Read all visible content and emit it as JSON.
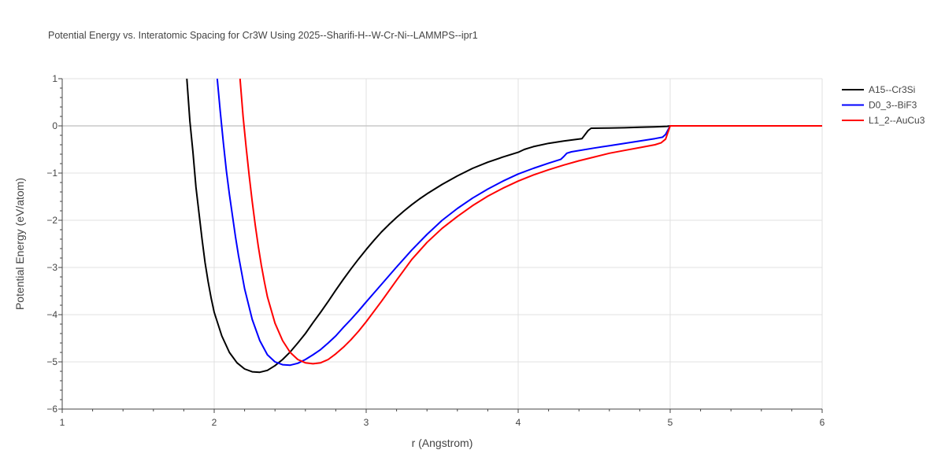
{
  "chart_data": {
    "type": "line",
    "title": "Potential Energy vs. Interatomic Spacing for Cr3W Using 2025--Sharifi-H--W-Cr-Ni--LAMMPS--ipr1",
    "xlabel": "r (Angstrom)",
    "ylabel": "Potential Energy (eV/atom)",
    "xlim": [
      1,
      6
    ],
    "ylim": [
      -6,
      1
    ],
    "xticks": [
      "1",
      "2",
      "3",
      "4",
      "5",
      "6"
    ],
    "yticks": [
      "1",
      "0",
      "−1",
      "−2",
      "−3",
      "−4",
      "−5",
      "−6"
    ],
    "grid": true,
    "legend_position": "top-right",
    "series": [
      {
        "name": "A15--Cr3Si",
        "color": "#000000",
        "x": [
          1.82,
          1.84,
          1.86,
          1.88,
          1.9,
          1.92,
          1.94,
          1.96,
          1.98,
          2.0,
          2.05,
          2.1,
          2.15,
          2.2,
          2.25,
          2.3,
          2.35,
          2.4,
          2.45,
          2.5,
          2.55,
          2.6,
          2.65,
          2.7,
          2.75,
          2.8,
          2.85,
          2.9,
          2.95,
          3.0,
          3.05,
          3.1,
          3.15,
          3.2,
          3.25,
          3.3,
          3.35,
          3.4,
          3.5,
          3.6,
          3.7,
          3.8,
          3.9,
          4.0,
          4.04,
          4.07,
          4.1,
          4.2,
          4.3,
          4.42,
          4.46,
          4.48,
          4.6,
          4.7,
          4.8,
          4.9,
          4.98,
          5.0,
          5.5,
          6.0
        ],
        "y": [
          1.0,
          0.1,
          -0.55,
          -1.3,
          -1.85,
          -2.4,
          -2.9,
          -3.3,
          -3.65,
          -3.95,
          -4.45,
          -4.8,
          -5.02,
          -5.15,
          -5.21,
          -5.22,
          -5.18,
          -5.08,
          -4.95,
          -4.79,
          -4.6,
          -4.4,
          -4.17,
          -3.95,
          -3.72,
          -3.48,
          -3.25,
          -3.03,
          -2.82,
          -2.62,
          -2.43,
          -2.25,
          -2.09,
          -1.94,
          -1.8,
          -1.67,
          -1.55,
          -1.44,
          -1.24,
          -1.06,
          -0.9,
          -0.77,
          -0.66,
          -0.56,
          -0.5,
          -0.47,
          -0.44,
          -0.37,
          -0.32,
          -0.27,
          -0.1,
          -0.05,
          -0.045,
          -0.04,
          -0.03,
          -0.02,
          -0.01,
          0.0,
          0.0,
          0.0
        ]
      },
      {
        "name": "D0_3--BiF3",
        "color": "#0000ff",
        "x": [
          2.02,
          2.04,
          2.06,
          2.08,
          2.1,
          2.12,
          2.14,
          2.16,
          2.18,
          2.2,
          2.25,
          2.3,
          2.35,
          2.4,
          2.45,
          2.5,
          2.55,
          2.6,
          2.65,
          2.7,
          2.75,
          2.8,
          2.85,
          2.9,
          2.95,
          3.0,
          3.1,
          3.2,
          3.3,
          3.4,
          3.5,
          3.6,
          3.7,
          3.8,
          3.9,
          4.0,
          4.1,
          4.2,
          4.28,
          4.3,
          4.32,
          4.35,
          4.5,
          4.6,
          4.7,
          4.8,
          4.9,
          4.95,
          4.97,
          5.0,
          5.5,
          6.0
        ],
        "y": [
          1.0,
          0.3,
          -0.35,
          -0.95,
          -1.45,
          -1.9,
          -2.35,
          -2.75,
          -3.1,
          -3.45,
          -4.1,
          -4.55,
          -4.85,
          -5.0,
          -5.06,
          -5.07,
          -5.03,
          -4.95,
          -4.85,
          -4.74,
          -4.6,
          -4.45,
          -4.27,
          -4.1,
          -3.92,
          -3.73,
          -3.36,
          -2.99,
          -2.63,
          -2.3,
          -2.0,
          -1.75,
          -1.53,
          -1.34,
          -1.17,
          -1.02,
          -0.9,
          -0.79,
          -0.71,
          -0.65,
          -0.58,
          -0.55,
          -0.47,
          -0.42,
          -0.37,
          -0.32,
          -0.27,
          -0.24,
          -0.18,
          0.0,
          0.0,
          0.0
        ]
      },
      {
        "name": "L1_2--AuCu3",
        "color": "#ff0000",
        "x": [
          2.17,
          2.19,
          2.21,
          2.23,
          2.25,
          2.27,
          2.29,
          2.31,
          2.33,
          2.35,
          2.4,
          2.45,
          2.5,
          2.55,
          2.6,
          2.65,
          2.7,
          2.75,
          2.8,
          2.85,
          2.9,
          2.95,
          3.0,
          3.1,
          3.2,
          3.3,
          3.4,
          3.5,
          3.6,
          3.7,
          3.8,
          3.9,
          4.0,
          4.1,
          4.2,
          4.3,
          4.4,
          4.5,
          4.6,
          4.7,
          4.8,
          4.9,
          4.94,
          4.97,
          5.0,
          5.5,
          6.0
        ],
        "y": [
          1.0,
          0.2,
          -0.45,
          -1.05,
          -1.6,
          -2.1,
          -2.55,
          -2.95,
          -3.3,
          -3.62,
          -4.18,
          -4.55,
          -4.8,
          -4.95,
          -5.02,
          -5.04,
          -5.02,
          -4.95,
          -4.83,
          -4.69,
          -4.53,
          -4.35,
          -4.15,
          -3.72,
          -3.27,
          -2.83,
          -2.47,
          -2.17,
          -1.92,
          -1.69,
          -1.49,
          -1.32,
          -1.17,
          -1.04,
          -0.93,
          -0.83,
          -0.74,
          -0.66,
          -0.58,
          -0.52,
          -0.46,
          -0.4,
          -0.36,
          -0.28,
          0.0,
          0.0,
          0.0
        ]
      }
    ]
  }
}
